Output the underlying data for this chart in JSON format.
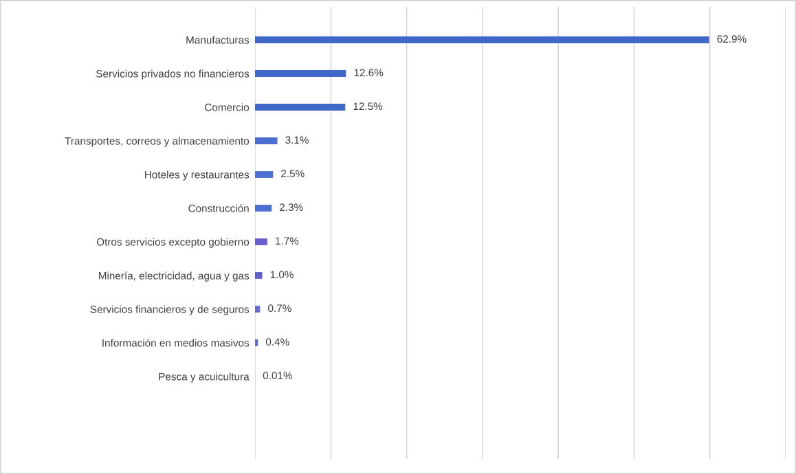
{
  "chart_data": {
    "type": "bar",
    "orientation": "horizontal",
    "relative": false,
    "categories": [
      "Manufacturas",
      "Servicios privados no financieros",
      "Comercio",
      "Transportes, correos y almacenamiento",
      "Hoteles y restaurantes",
      "Construcción",
      "Otros servicios excepto gobierno",
      "Minería, electricidad, agua y gas",
      "Servicios financieros y de seguros",
      "Información en medios masivos",
      "Pesca y acuicultura"
    ],
    "values": [
      62.9,
      12.6,
      12.5,
      3.1,
      2.5,
      2.3,
      1.7,
      1.0,
      0.7,
      0.4,
      0.01
    ],
    "value_labels": [
      "62.9%",
      "12.6%",
      "12.5%",
      "3.1%",
      "2.5%",
      "2.3%",
      "1.7%",
      "1.0%",
      "0.7%",
      "0.4%",
      "0.01%"
    ],
    "colors": [
      "#3f68c9",
      "#3f68c9",
      "#3f68c9",
      "#4a6fd0",
      "#4a6fd0",
      "#4a6fd0",
      "#6a5fd2",
      "#5f5fc9",
      "#6a6ad6",
      "#5a6ad6",
      "#5a6ad6"
    ],
    "xlim": [
      0,
      73.5
    ],
    "xticks": [
      {
        "value": 0,
        "label": null
      },
      {
        "value": 10.5,
        "label": null
      },
      {
        "value": 21,
        "label": null
      },
      {
        "value": 31.5,
        "label": null
      },
      {
        "value": 42,
        "label": null
      },
      {
        "value": 52.5,
        "label": null
      },
      {
        "value": 63,
        "label": null
      },
      {
        "value": 73.5,
        "label": null
      }
    ],
    "grid": "x"
  }
}
